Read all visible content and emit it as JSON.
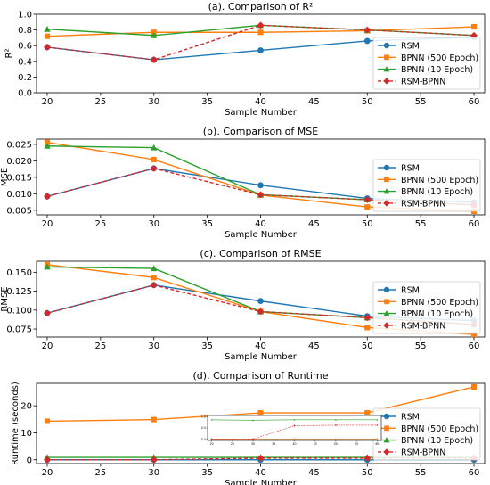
{
  "chart_data": [
    {
      "type": "line",
      "title": "(a). Comparison of R²",
      "xlabel": "Sample Number",
      "ylabel": "R²",
      "x": [
        20,
        30,
        40,
        50,
        60
      ],
      "xticks": [
        20,
        25,
        30,
        35,
        40,
        45,
        50,
        55,
        60
      ],
      "xlim": [
        19,
        61
      ],
      "ylim": [
        0.0,
        1.0
      ],
      "yticks": [
        0.0,
        0.2,
        0.4,
        0.6,
        0.8,
        1.0
      ],
      "ytick_labels": [
        "0.0",
        "0.2",
        "0.4",
        "0.6",
        "0.8",
        "1.0"
      ],
      "legend": "right",
      "series": [
        {
          "name": "RSM",
          "values": [
            0.58,
            0.42,
            0.54,
            0.66,
            0.71
          ]
        },
        {
          "name": "BPNN (500 Epoch)",
          "values": [
            0.72,
            0.77,
            0.77,
            0.79,
            0.84
          ]
        },
        {
          "name": "BPNN (10 Epoch)",
          "values": [
            0.81,
            0.73,
            0.86,
            0.8,
            0.73
          ]
        },
        {
          "name": "RSM-BPNN",
          "values": [
            0.58,
            0.42,
            0.86,
            0.8,
            0.73
          ]
        }
      ]
    },
    {
      "type": "line",
      "title": "(b). Comparison of MSE",
      "xlabel": "Sample Number",
      "ylabel": "MSE",
      "x": [
        20,
        30,
        40,
        50,
        60
      ],
      "xticks": [
        20,
        25,
        30,
        35,
        40,
        45,
        50,
        55,
        60
      ],
      "xlim": [
        19,
        61
      ],
      "ylim": [
        0.0036,
        0.0266
      ],
      "yticks": [
        0.005,
        0.01,
        0.015,
        0.02,
        0.025
      ],
      "ytick_labels": [
        "0.005",
        "0.010",
        "0.015",
        "0.020",
        "0.025"
      ],
      "legend": "right",
      "series": [
        {
          "name": "RSM",
          "values": [
            0.0092,
            0.0177,
            0.0126,
            0.0086,
            0.0074
          ]
        },
        {
          "name": "BPNN (500 Epoch)",
          "values": [
            0.0256,
            0.0204,
            0.0096,
            0.006,
            0.0047
          ]
        },
        {
          "name": "BPNN (10 Epoch)",
          "values": [
            0.0245,
            0.024,
            0.0097,
            0.0082,
            0.0066
          ]
        },
        {
          "name": "RSM-BPNN",
          "values": [
            0.0092,
            0.0177,
            0.0097,
            0.0082,
            0.0066
          ]
        }
      ]
    },
    {
      "type": "line",
      "title": "(c). Comparison of RMSE",
      "xlabel": "Sample Number",
      "ylabel": "RMSE",
      "x": [
        20,
        30,
        40,
        50,
        60
      ],
      "xticks": [
        20,
        25,
        30,
        35,
        40,
        45,
        50,
        55,
        60
      ],
      "xlim": [
        19,
        61
      ],
      "ylim": [
        0.0645,
        0.1645
      ],
      "yticks": [
        0.075,
        0.1,
        0.125,
        0.15
      ],
      "ytick_labels": [
        "0.075",
        "0.100",
        "0.125",
        "0.150"
      ],
      "legend": "right",
      "series": [
        {
          "name": "RSM",
          "values": [
            0.096,
            0.133,
            0.112,
            0.092,
            0.086
          ]
        },
        {
          "name": "BPNN (500 Epoch)",
          "values": [
            0.16,
            0.143,
            0.098,
            0.077,
            0.068
          ]
        },
        {
          "name": "BPNN (10 Epoch)",
          "values": [
            0.157,
            0.155,
            0.098,
            0.09,
            0.081
          ]
        },
        {
          "name": "RSM-BPNN",
          "values": [
            0.096,
            0.133,
            0.098,
            0.09,
            0.081
          ]
        }
      ]
    },
    {
      "type": "line",
      "title": "(d). Comparison of Runtime",
      "xlabel": "Sample Number",
      "ylabel": "Runtime (seconds)",
      "x": [
        20,
        30,
        40,
        50,
        60
      ],
      "xticks": [
        20,
        25,
        30,
        35,
        40,
        45,
        50,
        55,
        60
      ],
      "xlim": [
        19,
        61
      ],
      "ylim": [
        -1.4,
        28.3
      ],
      "yticks": [
        0,
        10,
        20
      ],
      "ytick_labels": [
        "0",
        "10",
        "20"
      ],
      "legend": "right",
      "series": [
        {
          "name": "RSM",
          "values": [
            0.0,
            0.0,
            0.0,
            0.0,
            0.0
          ]
        },
        {
          "name": "BPNN (500 Epoch)",
          "values": [
            14.3,
            14.9,
            17.4,
            17.4,
            27.0
          ]
        },
        {
          "name": "BPNN (10 Epoch)",
          "values": [
            0.9,
            0.9,
            0.9,
            0.9,
            0.9
          ]
        },
        {
          "name": "RSM-BPNN",
          "values": [
            0.0,
            0.0,
            0.6,
            0.6,
            0.6
          ]
        }
      ],
      "inset": {
        "x": [
          20,
          30,
          40,
          50,
          60
        ],
        "xlim": [
          19,
          61
        ],
        "ylim": [
          -0.05,
          1.05
        ],
        "xticks": [
          20,
          25,
          30,
          35,
          40,
          45,
          50,
          55,
          60
        ],
        "xtick_labels": [
          "20",
          "25",
          "30",
          "35",
          "40",
          "45",
          "50",
          "55",
          "60"
        ],
        "yticks": [
          0.0,
          0.5,
          1.0
        ],
        "ytick_labels": [
          "0.0",
          "0.5",
          "1.0"
        ],
        "series": [
          {
            "name": "RSM",
            "values": [
              0.01,
              0.01,
              0.01,
              0.01,
              0.01
            ]
          },
          {
            "name": "BPNN (500 Epoch)",
            "values": [
              0.0,
              0.0,
              0.0,
              0.0,
              0.0
            ]
          },
          {
            "name": "BPNN (10 Epoch)",
            "values": [
              0.86,
              0.84,
              0.86,
              0.86,
              0.86
            ]
          },
          {
            "name": "RSM-BPNN",
            "values": [
              0.01,
              0.01,
              0.6,
              0.62,
              0.62
            ]
          }
        ]
      }
    }
  ],
  "series_styles": [
    {
      "name": "RSM",
      "color": "#1f77b4",
      "marker": "circle",
      "dashed": false
    },
    {
      "name": "BPNN (500 Epoch)",
      "color": "#ff7f0e",
      "marker": "square",
      "dashed": false
    },
    {
      "name": "BPNN (10 Epoch)",
      "color": "#2ca02c",
      "marker": "triangle",
      "dashed": false
    },
    {
      "name": "RSM-BPNN",
      "color": "#d62728",
      "marker": "diamond",
      "dashed": true
    }
  ]
}
